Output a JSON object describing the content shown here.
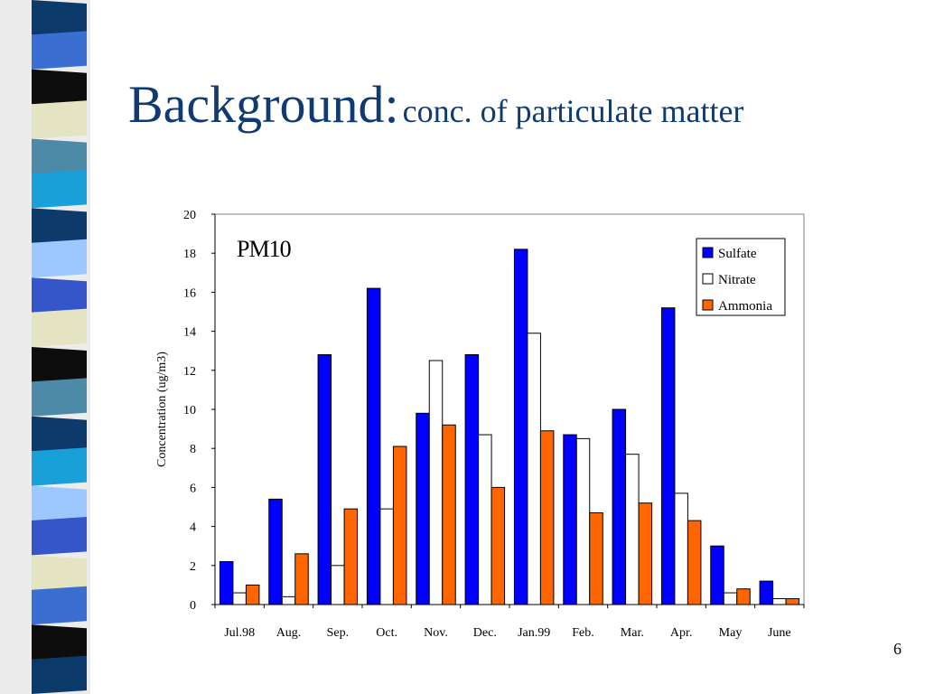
{
  "slide": {
    "title_main": "Background:",
    "title_sub": "conc. of particulate matter",
    "page_number": "6"
  },
  "colors": {
    "title": "#0f3a73",
    "sulfate": "#0000ff",
    "nitrate": "#ffffff",
    "ammonia": "#ff6600",
    "strip": [
      "#0b3a6b",
      "#3a6fd1",
      "#0d0d0d",
      "#e4e4c2",
      "#4c8aa8",
      "#1aa0d8",
      "#9cc8ff",
      "#3456c8"
    ]
  },
  "chart_data": {
    "type": "bar",
    "title": "PM10",
    "xlabel": "",
    "ylabel": "Concentration (ug/m3)",
    "ylim": [
      0,
      20
    ],
    "yticks": [
      0,
      2,
      4,
      6,
      8,
      10,
      12,
      14,
      16,
      18,
      20
    ],
    "grid": false,
    "legend_position": "top-right",
    "categories": [
      "Jul.98",
      "Aug.",
      "Sep.",
      "Oct.",
      "Nov.",
      "Dec.",
      "Jan.99",
      "Feb.",
      "Mar.",
      "Apr.",
      "May",
      "June"
    ],
    "series": [
      {
        "name": "Sulfate",
        "color": "#0000ff",
        "values": [
          2.2,
          5.4,
          12.8,
          16.2,
          9.8,
          12.8,
          18.2,
          8.7,
          10.0,
          15.2,
          3.0,
          1.2
        ]
      },
      {
        "name": "Nitrate",
        "color": "#ffffff",
        "values": [
          0.6,
          0.4,
          2.0,
          4.9,
          12.5,
          8.7,
          13.9,
          8.5,
          7.7,
          5.7,
          0.6,
          0.3
        ]
      },
      {
        "name": "Ammonia",
        "color": "#ff6600",
        "values": [
          1.0,
          2.6,
          4.9,
          8.1,
          9.2,
          6.0,
          8.9,
          4.7,
          5.2,
          4.3,
          0.8,
          0.3
        ]
      }
    ]
  }
}
